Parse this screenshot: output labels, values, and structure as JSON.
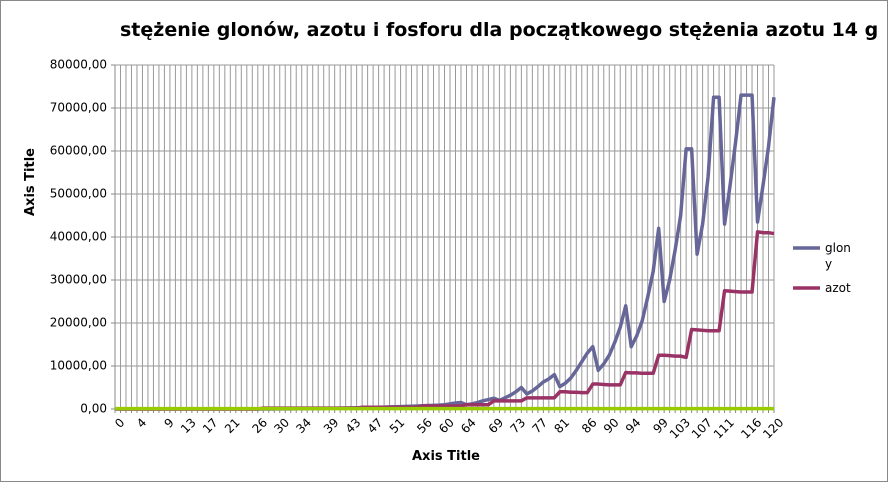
{
  "chart_data": {
    "type": "line",
    "title": "stężenie glonów, azotu i fosforu dla początkowego stężenia azotu 14 g",
    "x_label": "Axis Title",
    "y_label": "Axis Title",
    "categories": [
      0,
      null,
      null,
      null,
      4,
      null,
      null,
      null,
      null,
      9,
      null,
      null,
      null,
      13,
      null,
      null,
      null,
      17,
      null,
      null,
      null,
      21,
      null,
      null,
      null,
      null,
      26,
      null,
      null,
      null,
      30,
      null,
      null,
      null,
      34,
      null,
      null,
      null,
      null,
      39,
      null,
      null,
      null,
      43,
      null,
      null,
      null,
      47,
      null,
      null,
      null,
      51,
      null,
      null,
      null,
      null,
      56,
      null,
      null,
      null,
      60,
      null,
      null,
      null,
      64,
      null,
      null,
      null,
      null,
      69,
      null,
      null,
      null,
      73,
      null,
      null,
      null,
      77,
      null,
      null,
      null,
      81,
      null,
      null,
      null,
      null,
      86,
      null,
      null,
      null,
      90,
      null,
      null,
      null,
      94,
      null,
      null,
      null,
      null,
      99,
      null,
      null,
      null,
      103,
      null,
      null,
      null,
      107,
      null,
      null,
      null,
      111,
      null,
      null,
      null,
      null,
      116,
      null,
      null,
      null,
      120
    ],
    "series": [
      {
        "name": "glony",
        "color": "#666699",
        "values": [
          0,
          0,
          0,
          0,
          0,
          0,
          0,
          0,
          0,
          0,
          0,
          0,
          0,
          0,
          0,
          0,
          0,
          0,
          0,
          0,
          0,
          0,
          0,
          0,
          0,
          0,
          0,
          0,
          0,
          0,
          20,
          30,
          40,
          50,
          60,
          80,
          100,
          120,
          140,
          160,
          180,
          200,
          220,
          250,
          280,
          300,
          330,
          360,
          400,
          440,
          480,
          520,
          560,
          600,
          650,
          700,
          750,
          800,
          850,
          900,
          1000,
          1200,
          1400,
          1500,
          1000,
          1200,
          1500,
          1900,
          2200,
          2500,
          2000,
          2600,
          3200,
          4000,
          5000,
          3500,
          4200,
          5200,
          6300,
          7000,
          8000,
          5200,
          6000,
          7200,
          9000,
          11000,
          13000,
          14500,
          9000,
          10500,
          12500,
          15500,
          19000,
          24000,
          14500,
          17000,
          20500,
          26000,
          32000,
          42000,
          25000,
          30000,
          37000,
          45000,
          60500,
          60500,
          36000,
          43000,
          54000,
          72500,
          72500,
          43000,
          52000,
          62000,
          73000,
          73000,
          73000,
          43500,
          52000,
          61000,
          72500
        ]
      },
      {
        "name": "azot",
        "color": "#993366",
        "values": [
          0,
          0,
          0,
          0,
          0,
          0,
          0,
          0,
          0,
          0,
          0,
          0,
          0,
          0,
          0,
          0,
          0,
          0,
          0,
          0,
          0,
          0,
          0,
          0,
          0,
          0,
          0,
          200,
          200,
          200,
          200,
          200,
          200,
          200,
          200,
          200,
          200,
          200,
          200,
          200,
          200,
          200,
          200,
          200,
          200,
          400,
          400,
          400,
          400,
          400,
          400,
          400,
          400,
          400,
          400,
          400,
          700,
          700,
          700,
          700,
          700,
          700,
          700,
          700,
          1000,
          1000,
          1000,
          1000,
          1000,
          1900,
          1900,
          1900,
          1900,
          1900,
          1900,
          2600,
          2600,
          2600,
          2600,
          2600,
          2600,
          4000,
          4000,
          3900,
          3900,
          3800,
          3800,
          5800,
          5800,
          5700,
          5600,
          5600,
          5600,
          8500,
          8400,
          8400,
          8300,
          8300,
          8300,
          12500,
          12500,
          12400,
          12300,
          12300,
          12000,
          18500,
          18400,
          18300,
          18200,
          18200,
          18200,
          27500,
          27400,
          27300,
          27200,
          27200,
          27200,
          41200,
          41000,
          41000,
          40800
        ]
      },
      {
        "color": "#99cc00",
        "values": [
          100,
          100,
          100,
          100,
          100,
          100,
          100,
          100,
          100,
          100,
          100,
          100,
          100,
          100,
          100,
          100,
          100,
          100,
          100,
          100,
          100,
          100,
          100,
          100,
          100,
          100,
          100,
          100,
          100,
          100,
          100,
          100,
          100,
          100,
          100,
          100,
          100,
          100,
          100,
          100,
          100,
          100,
          100,
          100,
          100,
          100,
          100,
          100,
          100,
          100,
          100,
          100,
          100,
          100,
          100,
          100,
          100,
          100,
          100,
          100,
          100,
          100,
          100,
          100,
          100,
          100,
          100,
          100,
          100,
          100,
          100,
          100,
          100,
          100,
          100,
          100,
          100,
          100,
          100,
          100,
          100,
          100,
          100,
          100,
          100,
          100,
          100,
          100,
          100,
          100,
          100,
          100,
          100,
          100,
          100,
          100,
          100,
          100,
          100,
          100,
          100,
          100,
          100,
          100,
          100,
          100,
          100,
          100,
          100,
          100,
          100,
          100,
          100,
          100,
          100,
          100,
          100,
          100,
          100,
          100,
          100
        ]
      }
    ],
    "ylim": [
      0,
      80000
    ],
    "yticks": [
      {
        "value": 0,
        "label": "0,00"
      },
      {
        "value": 10000,
        "label": "10000,00"
      },
      {
        "value": 20000,
        "label": "20000,00"
      },
      {
        "value": 30000,
        "label": "30000,00"
      },
      {
        "value": 40000,
        "label": "40000,00"
      },
      {
        "value": 50000,
        "label": "50000,00"
      },
      {
        "value": 60000,
        "label": "60000,00"
      },
      {
        "value": 70000,
        "label": "70000,00"
      },
      {
        "value": 80000,
        "label": "80000,00"
      }
    ],
    "grid": true,
    "legend": "right"
  }
}
